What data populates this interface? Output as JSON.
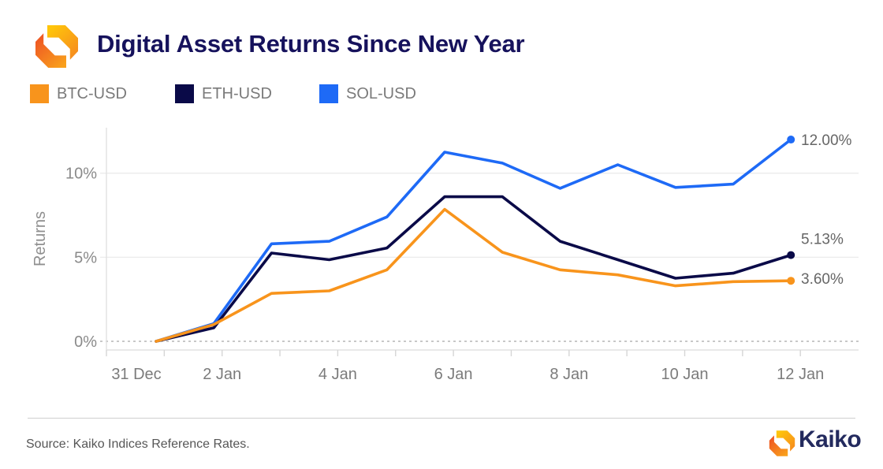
{
  "header": {
    "title": "Digital Asset Returns Since New Year"
  },
  "legend": {
    "items": [
      {
        "label": "BTC-USD",
        "color": "#F8941C"
      },
      {
        "label": "ETH-USD",
        "color": "#0A0A48"
      },
      {
        "label": "SOL-USD",
        "color": "#1E6AF6"
      }
    ]
  },
  "chart_data": {
    "type": "line",
    "title": "Digital Asset Returns Since New Year",
    "xlabel": "",
    "ylabel": "Returns",
    "x": [
      "1 Jan",
      "2 Jan",
      "3 Jan",
      "4 Jan",
      "5 Jan",
      "6 Jan",
      "7 Jan",
      "8 Jan",
      "9 Jan",
      "10 Jan",
      "11 Jan",
      "12 Jan"
    ],
    "x_tick_labels": [
      "31 Dec",
      "2 Jan",
      "4 Jan",
      "6 Jan",
      "8 Jan",
      "10 Jan",
      "12 Jan"
    ],
    "y_tick_labels": [
      "0%",
      "5%",
      "10%"
    ],
    "y_tick_values": [
      0,
      5,
      10
    ],
    "ylim": [
      -0.5,
      12.6
    ],
    "grid": "horizontal-light",
    "zero_baseline_dashed": true,
    "legend_position": "top-left",
    "series": [
      {
        "name": "BTC-USD",
        "color": "#F8941C",
        "end_label": "3.60%",
        "values": [
          0,
          1.0,
          2.85,
          3.0,
          4.25,
          7.85,
          5.3,
          4.25,
          3.95,
          3.3,
          3.55,
          3.6
        ]
      },
      {
        "name": "ETH-USD",
        "color": "#0A0A48",
        "end_label": "5.13%",
        "values": [
          0,
          0.8,
          5.25,
          4.85,
          5.55,
          8.6,
          8.6,
          5.95,
          4.85,
          3.75,
          4.05,
          5.13
        ]
      },
      {
        "name": "SOL-USD",
        "color": "#1E6AF6",
        "end_label": "12.00%",
        "values": [
          0,
          1.05,
          5.8,
          5.95,
          7.4,
          11.25,
          10.6,
          9.1,
          10.5,
          9.15,
          9.35,
          12.0
        ]
      }
    ]
  },
  "footer": {
    "source": "Source: Kaiko Indices Reference Rates.",
    "brand": "Kaiko"
  }
}
